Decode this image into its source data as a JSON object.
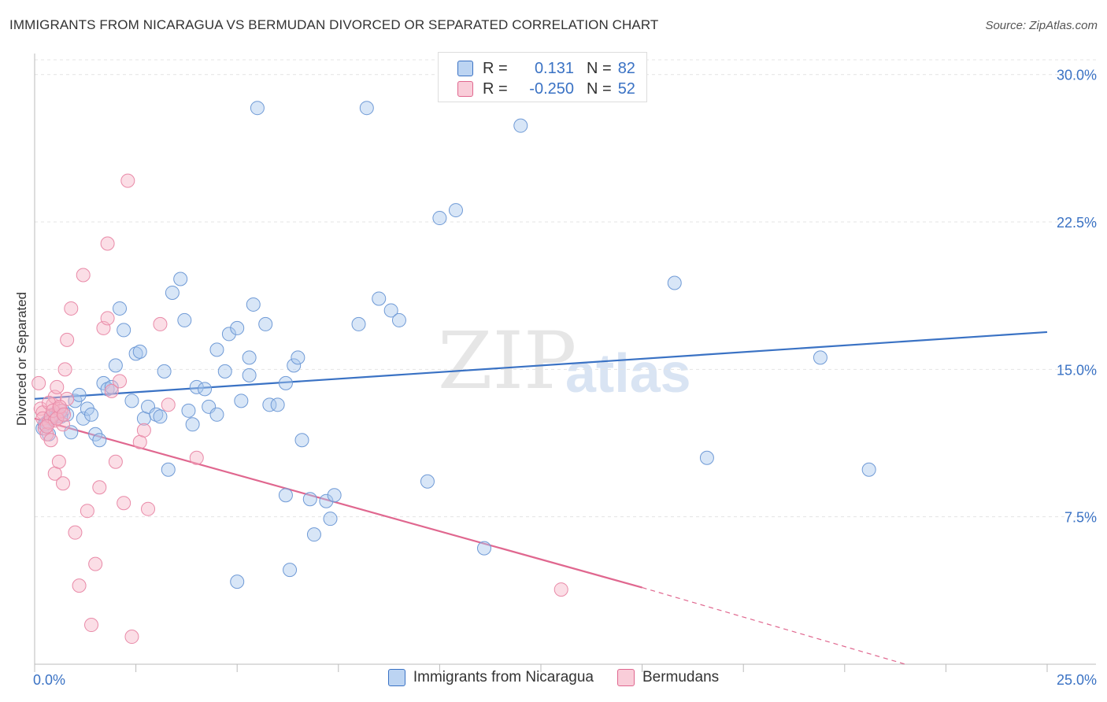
{
  "title": "IMMIGRANTS FROM NICARAGUA VS BERMUDAN DIVORCED OR SEPARATED CORRELATION CHART",
  "source": "Source: ZipAtlas.com",
  "watermark": {
    "zip": "ZIP",
    "atlas": "atlas"
  },
  "colors": {
    "blue": "#3a72c4",
    "blue_fill": "#a9c7ee",
    "pink": "#e0678f",
    "pink_fill": "#f6b5c8"
  },
  "legend_top": [
    {
      "r_label": "R =",
      "r_value": "0.131",
      "n_label": "N =",
      "n_value": "82"
    },
    {
      "r_label": "R =",
      "r_value": "-0.250",
      "n_label": "N =",
      "n_value": "52"
    }
  ],
  "chart_data": {
    "type": "scatter",
    "title": "IMMIGRANTS FROM NICARAGUA VS BERMUDAN DIVORCED OR SEPARATED CORRELATION CHART",
    "xlabel": "",
    "ylabel": "Divorced or Separated",
    "xlim": [
      0,
      25
    ],
    "ylim": [
      0,
      30.75
    ],
    "x_tick_labels": [
      "0.0%",
      "25.0%"
    ],
    "y_ticks": [
      7.5,
      15.0,
      22.5,
      30.0
    ],
    "y_tick_labels": [
      "7.5%",
      "15.0%",
      "22.5%",
      "30.0%"
    ],
    "grid": true,
    "legend_position": "bottom",
    "series": [
      {
        "name": "Immigrants from Nicaragua",
        "color": "#3a72c4",
        "trend": {
          "x": [
            0,
            25
          ],
          "y": [
            13.5,
            16.9
          ],
          "dashed_from": null
        },
        "points": [
          [
            0.2,
            12.0
          ],
          [
            0.3,
            12.3
          ],
          [
            0.35,
            11.7
          ],
          [
            0.4,
            12.5
          ],
          [
            0.5,
            12.6
          ],
          [
            0.6,
            12.7
          ],
          [
            0.7,
            12.9
          ],
          [
            0.8,
            12.7
          ],
          [
            0.9,
            11.8
          ],
          [
            1.0,
            13.4
          ],
          [
            1.1,
            13.7
          ],
          [
            1.2,
            12.5
          ],
          [
            1.3,
            13.0
          ],
          [
            1.4,
            12.7
          ],
          [
            1.5,
            11.7
          ],
          [
            1.6,
            11.4
          ],
          [
            1.7,
            14.3
          ],
          [
            1.8,
            14.0
          ],
          [
            1.9,
            14.1
          ],
          [
            2.0,
            15.2
          ],
          [
            2.1,
            18.1
          ],
          [
            2.2,
            17.0
          ],
          [
            2.4,
            13.4
          ],
          [
            2.5,
            15.8
          ],
          [
            2.6,
            15.9
          ],
          [
            2.7,
            12.5
          ],
          [
            2.8,
            13.1
          ],
          [
            3.0,
            12.7
          ],
          [
            3.1,
            12.6
          ],
          [
            3.2,
            14.9
          ],
          [
            3.3,
            9.9
          ],
          [
            3.4,
            18.9
          ],
          [
            3.6,
            19.6
          ],
          [
            3.7,
            17.5
          ],
          [
            3.8,
            12.9
          ],
          [
            3.9,
            12.2
          ],
          [
            4.0,
            14.1
          ],
          [
            4.2,
            14.0
          ],
          [
            4.3,
            13.1
          ],
          [
            4.5,
            12.7
          ],
          [
            4.5,
            16.0
          ],
          [
            4.7,
            14.9
          ],
          [
            4.8,
            16.8
          ],
          [
            5.0,
            17.1
          ],
          [
            5.1,
            13.4
          ],
          [
            5.3,
            15.6
          ],
          [
            5.3,
            14.7
          ],
          [
            5.4,
            18.3
          ],
          [
            5.5,
            28.3
          ],
          [
            5.7,
            17.3
          ],
          [
            5.8,
            13.2
          ],
          [
            6.0,
            13.2
          ],
          [
            6.2,
            8.6
          ],
          [
            6.2,
            14.3
          ],
          [
            6.4,
            15.2
          ],
          [
            6.5,
            15.6
          ],
          [
            6.6,
            11.4
          ],
          [
            6.8,
            8.4
          ],
          [
            6.9,
            6.6
          ],
          [
            7.2,
            8.3
          ],
          [
            7.3,
            7.4
          ],
          [
            7.4,
            8.6
          ],
          [
            8.2,
            28.3
          ],
          [
            8.0,
            17.3
          ],
          [
            8.5,
            18.6
          ],
          [
            8.8,
            18.0
          ],
          [
            9.0,
            17.5
          ],
          [
            9.7,
            9.3
          ],
          [
            10.0,
            22.7
          ],
          [
            10.4,
            23.1
          ],
          [
            11.1,
            5.9
          ],
          [
            12.0,
            27.4
          ],
          [
            15.8,
            19.4
          ],
          [
            16.6,
            10.5
          ],
          [
            19.4,
            15.6
          ],
          [
            20.6,
            9.9
          ],
          [
            5.0,
            4.2
          ],
          [
            6.3,
            4.8
          ],
          [
            0.25,
            12.2
          ],
          [
            0.45,
            12.7
          ],
          [
            0.55,
            12.6
          ],
          [
            0.65,
            12.6
          ]
        ]
      },
      {
        "name": "Bermudans",
        "color": "#e0678f",
        "trend": {
          "x": [
            0,
            15
          ],
          "y": [
            12.5,
            3.9
          ],
          "dashed_from": 15,
          "dashed_to": [
            21.5,
            0
          ]
        },
        "points": [
          [
            0.1,
            14.3
          ],
          [
            0.15,
            13.0
          ],
          [
            0.2,
            12.8
          ],
          [
            0.2,
            12.5
          ],
          [
            0.25,
            12.0
          ],
          [
            0.3,
            11.7
          ],
          [
            0.35,
            12.3
          ],
          [
            0.4,
            12.6
          ],
          [
            0.45,
            13.2
          ],
          [
            0.5,
            12.4
          ],
          [
            0.5,
            13.6
          ],
          [
            0.55,
            14.1
          ],
          [
            0.6,
            13.0
          ],
          [
            0.65,
            12.9
          ],
          [
            0.7,
            12.2
          ],
          [
            0.8,
            13.5
          ],
          [
            0.4,
            11.4
          ],
          [
            0.5,
            9.7
          ],
          [
            0.6,
            10.3
          ],
          [
            0.7,
            9.2
          ],
          [
            0.75,
            15.0
          ],
          [
            0.8,
            16.5
          ],
          [
            0.9,
            18.1
          ],
          [
            1.0,
            6.7
          ],
          [
            1.1,
            4.0
          ],
          [
            1.2,
            19.8
          ],
          [
            1.3,
            7.8
          ],
          [
            1.4,
            2.0
          ],
          [
            1.5,
            5.1
          ],
          [
            1.6,
            9.0
          ],
          [
            1.7,
            17.1
          ],
          [
            1.8,
            17.6
          ],
          [
            1.8,
            21.4
          ],
          [
            1.9,
            13.9
          ],
          [
            2.0,
            10.3
          ],
          [
            2.1,
            14.4
          ],
          [
            2.2,
            8.2
          ],
          [
            2.3,
            24.6
          ],
          [
            2.4,
            1.4
          ],
          [
            2.6,
            11.3
          ],
          [
            2.7,
            11.9
          ],
          [
            2.8,
            7.9
          ],
          [
            3.1,
            17.3
          ],
          [
            3.3,
            13.2
          ],
          [
            4.0,
            10.5
          ],
          [
            13.0,
            3.8
          ],
          [
            0.3,
            12.1
          ],
          [
            0.35,
            13.3
          ],
          [
            0.45,
            12.9
          ],
          [
            0.55,
            12.5
          ],
          [
            0.62,
            13.1
          ],
          [
            0.72,
            12.7
          ]
        ]
      }
    ]
  },
  "y_axis_label": "Divorced or Separated",
  "x_axis_left": "0.0%",
  "x_axis_right": "25.0%",
  "legend_bottom": [
    "Immigrants from Nicaragua",
    "Bermudans"
  ]
}
